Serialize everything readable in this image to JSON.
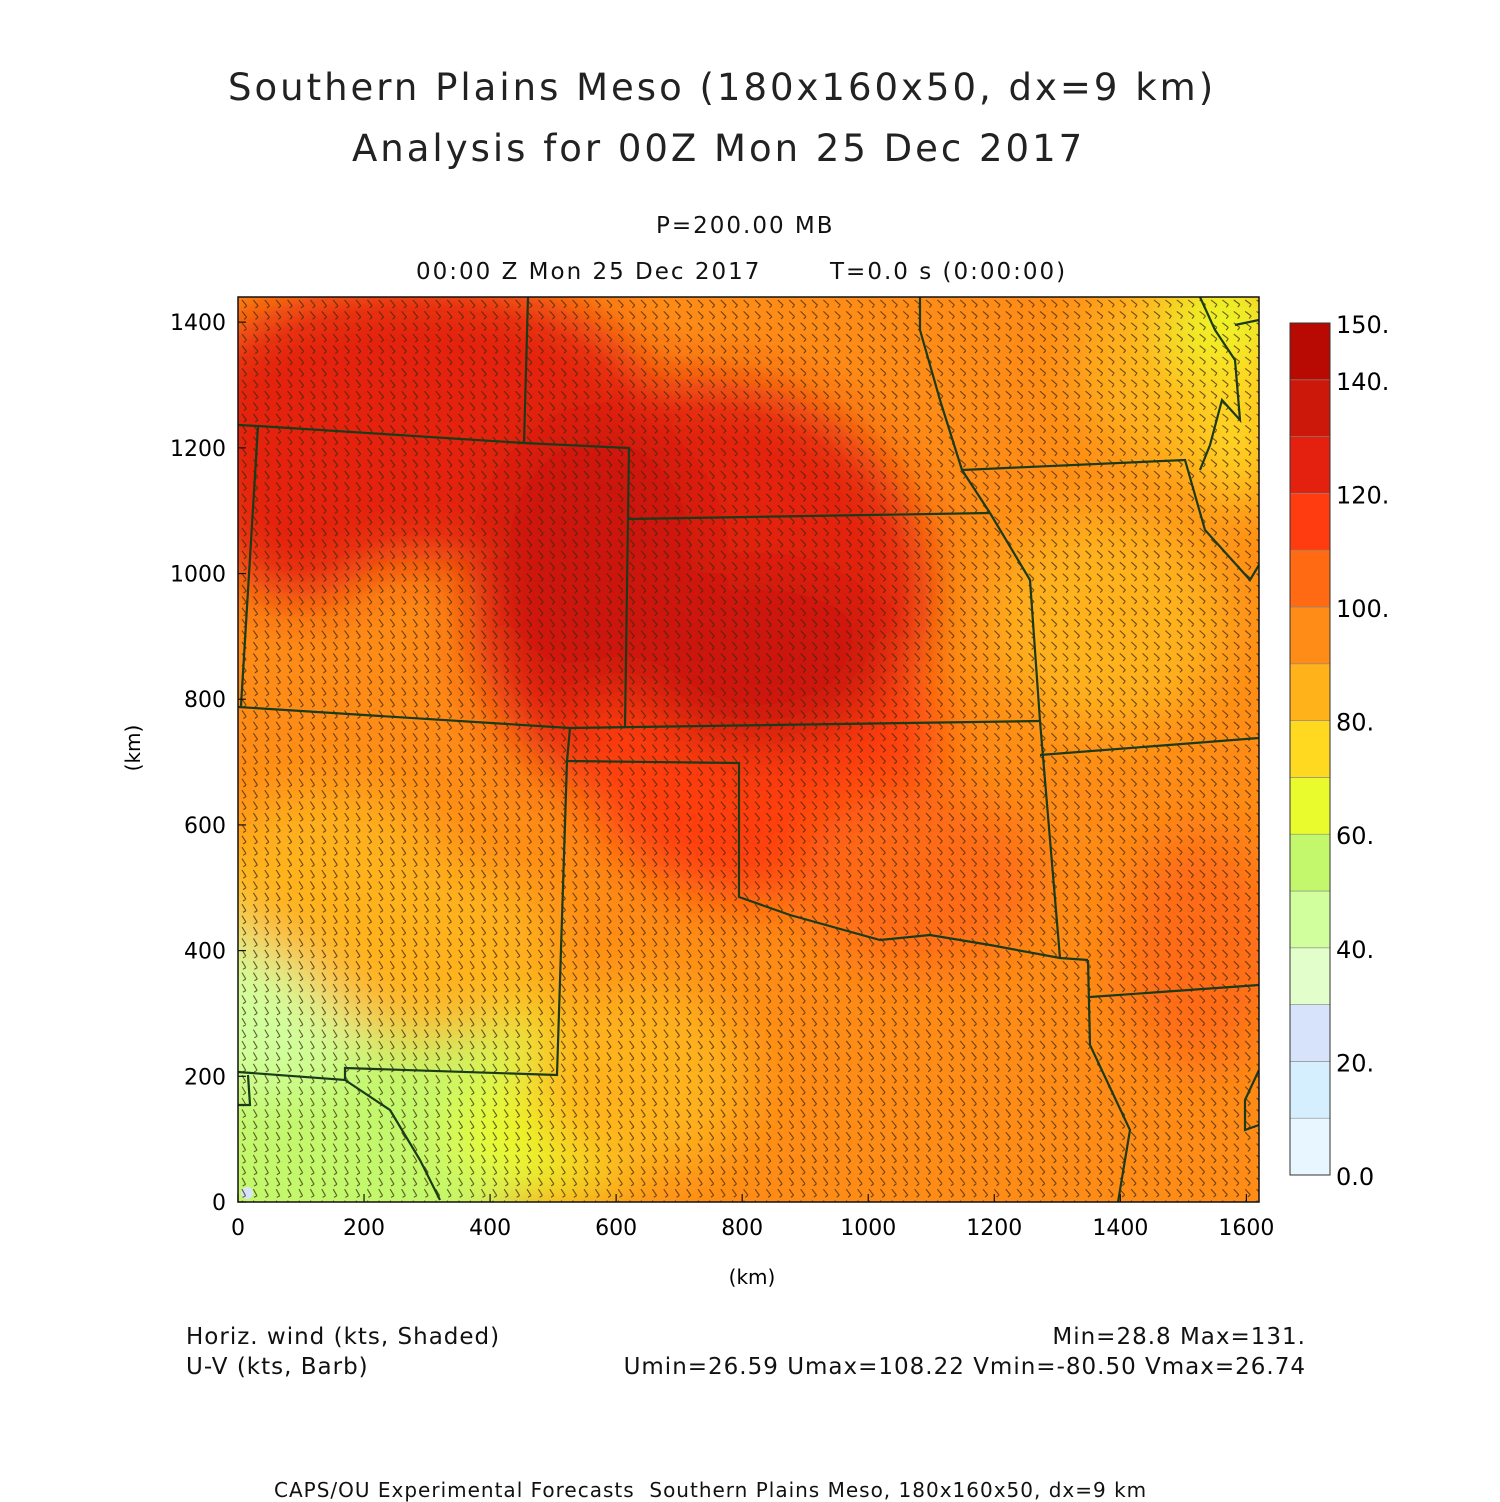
{
  "header": {
    "title_line1": "Southern Plains Meso (180x160x50, dx=9 km)",
    "title_line2": "Analysis for 00Z Mon 25 Dec 2017",
    "level": "P=200.00 MB",
    "valid_time": "00:00 Z Mon 25 Dec 2017",
    "forecast_time": "T=0.0 s (0:00:00)"
  },
  "axes": {
    "x_label": "(km)",
    "y_label": "(km)",
    "x_ticks": [
      "0",
      "200",
      "400",
      "600",
      "800",
      "1000",
      "1200",
      "1400",
      "1600"
    ],
    "y_ticks": [
      "0",
      "200",
      "400",
      "600",
      "800",
      "1000",
      "1200",
      "1400"
    ],
    "x_range_km": [
      0,
      1620
    ],
    "y_range_km": [
      0,
      1440
    ]
  },
  "colorbar": {
    "labels": [
      "150.",
      "140.",
      "120.",
      "100.",
      "80.",
      "60.",
      "40.",
      "20.",
      "0.0"
    ],
    "bins": [
      {
        "min": 0,
        "max": 10,
        "color": "#e8f7ff"
      },
      {
        "min": 10,
        "max": 20,
        "color": "#d6efff"
      },
      {
        "min": 20,
        "max": 30,
        "color": "#d7e3fb"
      },
      {
        "min": 30,
        "max": 40,
        "color": "#e2ffcb"
      },
      {
        "min": 40,
        "max": 50,
        "color": "#d1ff9e"
      },
      {
        "min": 50,
        "max": 60,
        "color": "#c3f76c"
      },
      {
        "min": 60,
        "max": 70,
        "color": "#e9fb2c"
      },
      {
        "min": 70,
        "max": 80,
        "color": "#ffd820"
      },
      {
        "min": 80,
        "max": 90,
        "color": "#ffb21a"
      },
      {
        "min": 90,
        "max": 100,
        "color": "#ff8c16"
      },
      {
        "min": 100,
        "max": 110,
        "color": "#ff6a12"
      },
      {
        "min": 110,
        "max": 120,
        "color": "#ff3c10"
      },
      {
        "min": 120,
        "max": 130,
        "color": "#e4200e"
      },
      {
        "min": 130,
        "max": 140,
        "color": "#cc180a"
      },
      {
        "min": 140,
        "max": 150,
        "color": "#b80a02"
      }
    ]
  },
  "footer": {
    "field1": "Horiz. wind (kts, Shaded)",
    "field2": "U-V (kts, Barb)",
    "minmax": "Min=28.8 Max=131.",
    "uvstats": "Umin=26.59 Umax=108.22 Vmin=-80.50 Vmax=26.74",
    "credit": "CAPS/OU Experimental Forecasts  Southern Plains Meso, 180x160x50, dx=9 km"
  },
  "map": {
    "background_color": "#ff9a18",
    "boundary_color": "#1a3a1a",
    "barb_color": "#3a2a10"
  }
}
